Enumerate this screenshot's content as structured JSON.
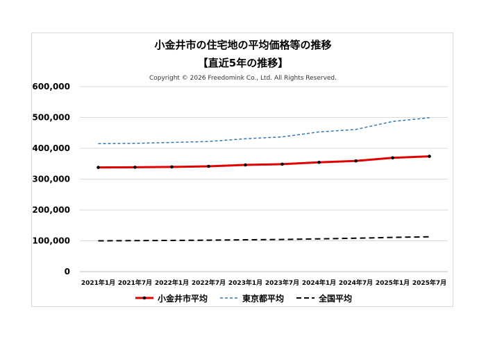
{
  "chart_data": {
    "type": "line",
    "title": "小金井市の住宅地の平均価格等の推移",
    "subtitle": "【直近5年の推移】",
    "copyright": "Copyright © 2026 Freedomink Co., Ltd. All Rights Reserved.",
    "categories": [
      "2021年1月",
      "2021年7月",
      "2022年1月",
      "2022年7月",
      "2023年1月",
      "2023年7月",
      "2024年1月",
      "2024年7月",
      "2025年1月",
      "2025年7月"
    ],
    "yticks": [
      "0",
      "100,000",
      "200,000",
      "300,000",
      "400,000",
      "500,000",
      "600,000"
    ],
    "ylim": [
      0,
      600000
    ],
    "grid": true,
    "legend_position": "bottom",
    "series": [
      {
        "name": "小金井市平均",
        "color": "#e00000",
        "style": "solid-markers",
        "values": [
          338000,
          338500,
          339500,
          341500,
          346000,
          348500,
          354500,
          359000,
          369000,
          374000
        ]
      },
      {
        "name": "東京都平均",
        "color": "#2e75b6",
        "style": "dashed",
        "values": [
          415000,
          416000,
          419000,
          422000,
          431000,
          437000,
          453000,
          461000,
          487000,
          499000
        ]
      },
      {
        "name": "全国平均",
        "color": "#000000",
        "style": "dashed-long",
        "values": [
          100000,
          100500,
          101200,
          102000,
          103300,
          104300,
          106300,
          108300,
          111000,
          113000
        ]
      }
    ]
  }
}
